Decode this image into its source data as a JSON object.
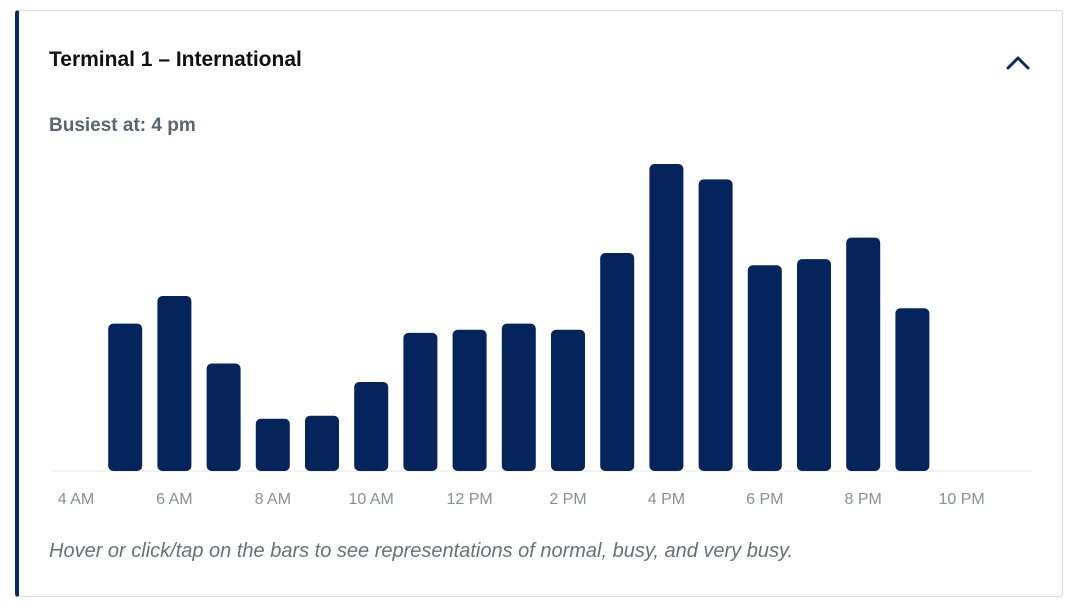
{
  "card": {
    "title": "Terminal 1 – International",
    "toggle_icon": "chevron-up-icon",
    "busiest_label": "Busiest at: 4 pm",
    "hint": "Hover or click/tap on the bars to see representations of normal, busy, and very busy."
  },
  "colors": {
    "bar": "#06245c",
    "accent": "#0a2a63"
  },
  "chart_data": {
    "type": "bar",
    "x_tick_labels": [
      "4 AM",
      "6 AM",
      "8 AM",
      "10 AM",
      "12 PM",
      "2 PM",
      "4 PM",
      "6 PM",
      "8 PM",
      "10 PM"
    ],
    "categories": [
      "5 AM",
      "6 AM",
      "7 AM",
      "8 AM",
      "9 AM",
      "10 AM",
      "11 AM",
      "12 PM",
      "1 PM",
      "2 PM",
      "3 PM",
      "4 PM",
      "5 PM",
      "6 PM",
      "7 PM",
      "8 PM",
      "9 PM"
    ],
    "values": [
      48,
      57,
      35,
      17,
      18,
      29,
      45,
      46,
      48,
      46,
      71,
      100,
      95,
      67,
      69,
      76,
      53
    ],
    "ylim": [
      0,
      100
    ],
    "grid": false
  }
}
